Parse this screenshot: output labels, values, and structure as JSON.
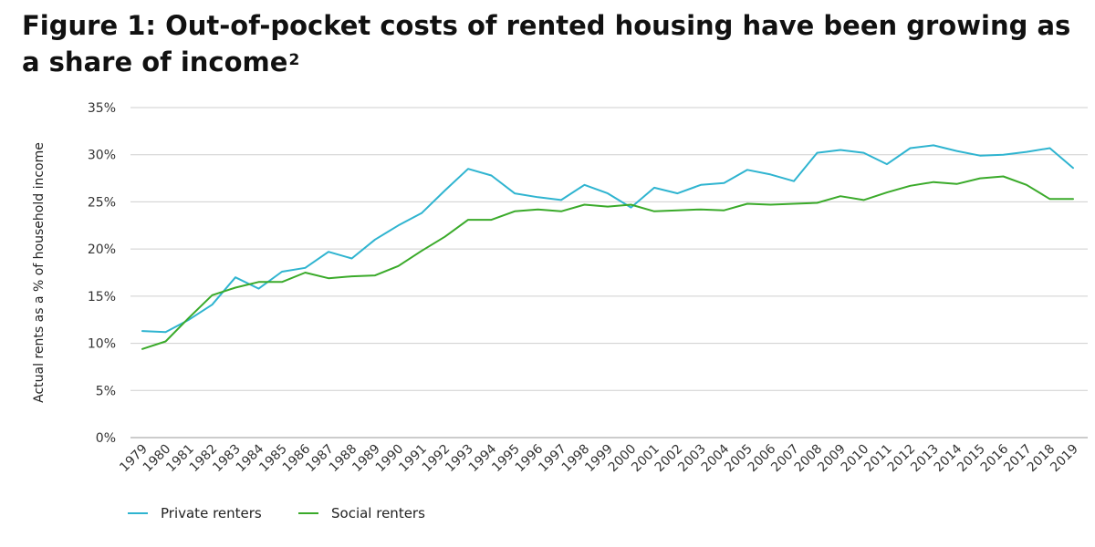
{
  "title": "Figure 1: Out-of-pocket costs of rented housing have been growing as a share of income",
  "title_footnote": "2",
  "chart_data": {
    "type": "line",
    "title": "Figure 1: Out-of-pocket costs of rented housing have been growing as a share of income",
    "xlabel": "",
    "ylabel": "Actual rents as a % of household income",
    "ylim": [
      0,
      35
    ],
    "yticks": [
      0,
      5,
      10,
      15,
      20,
      25,
      30,
      35
    ],
    "ytick_labels": [
      "0%",
      "5%",
      "10%",
      "15%",
      "20%",
      "25%",
      "30%",
      "35%"
    ],
    "grid": "horizontal",
    "legend_position": "bottom-left",
    "x": [
      "1979",
      "1980",
      "1981",
      "1982",
      "1983",
      "1984",
      "1985",
      "1986",
      "1987",
      "1988",
      "1989",
      "1990",
      "1991",
      "1992",
      "1993",
      "1994",
      "1995",
      "1996",
      "1997",
      "1998",
      "1999",
      "2000",
      "2001",
      "2002",
      "2003",
      "2004",
      "2005",
      "2006",
      "2007",
      "2008",
      "2009",
      "2010",
      "2011",
      "2012",
      "2013",
      "2014",
      "2015",
      "2016",
      "2017",
      "2018",
      "2019"
    ],
    "series": [
      {
        "name": "Private renters",
        "color": "#2fb4d0",
        "values": [
          11.3,
          11.2,
          12.5,
          14.1,
          17.0,
          15.8,
          17.6,
          18.0,
          19.7,
          19.0,
          21.0,
          22.5,
          23.8,
          26.2,
          28.5,
          27.8,
          25.9,
          25.5,
          25.2,
          26.8,
          25.9,
          24.4,
          26.5,
          25.9,
          26.8,
          27.0,
          28.4,
          27.9,
          27.2,
          30.2,
          30.5,
          30.2,
          29.0,
          30.7,
          31.0,
          30.4,
          29.9,
          30.0,
          30.3,
          30.7,
          28.6
        ]
      },
      {
        "name": "Social renters",
        "color": "#3aaa2a",
        "values": [
          9.4,
          10.2,
          12.7,
          15.1,
          15.9,
          16.5,
          16.5,
          17.5,
          16.9,
          17.1,
          17.2,
          18.2,
          19.8,
          21.3,
          23.1,
          23.1,
          24.0,
          24.2,
          24.0,
          24.7,
          24.5,
          24.7,
          24.0,
          24.1,
          24.2,
          24.1,
          24.8,
          24.7,
          24.8,
          24.9,
          25.6,
          25.2,
          26.0,
          26.7,
          27.1,
          26.9,
          27.5,
          27.7,
          26.8,
          25.3,
          25.3
        ]
      }
    ]
  },
  "colors": {
    "grid": "#cfcfcf",
    "axis": "#9a9a9a"
  }
}
